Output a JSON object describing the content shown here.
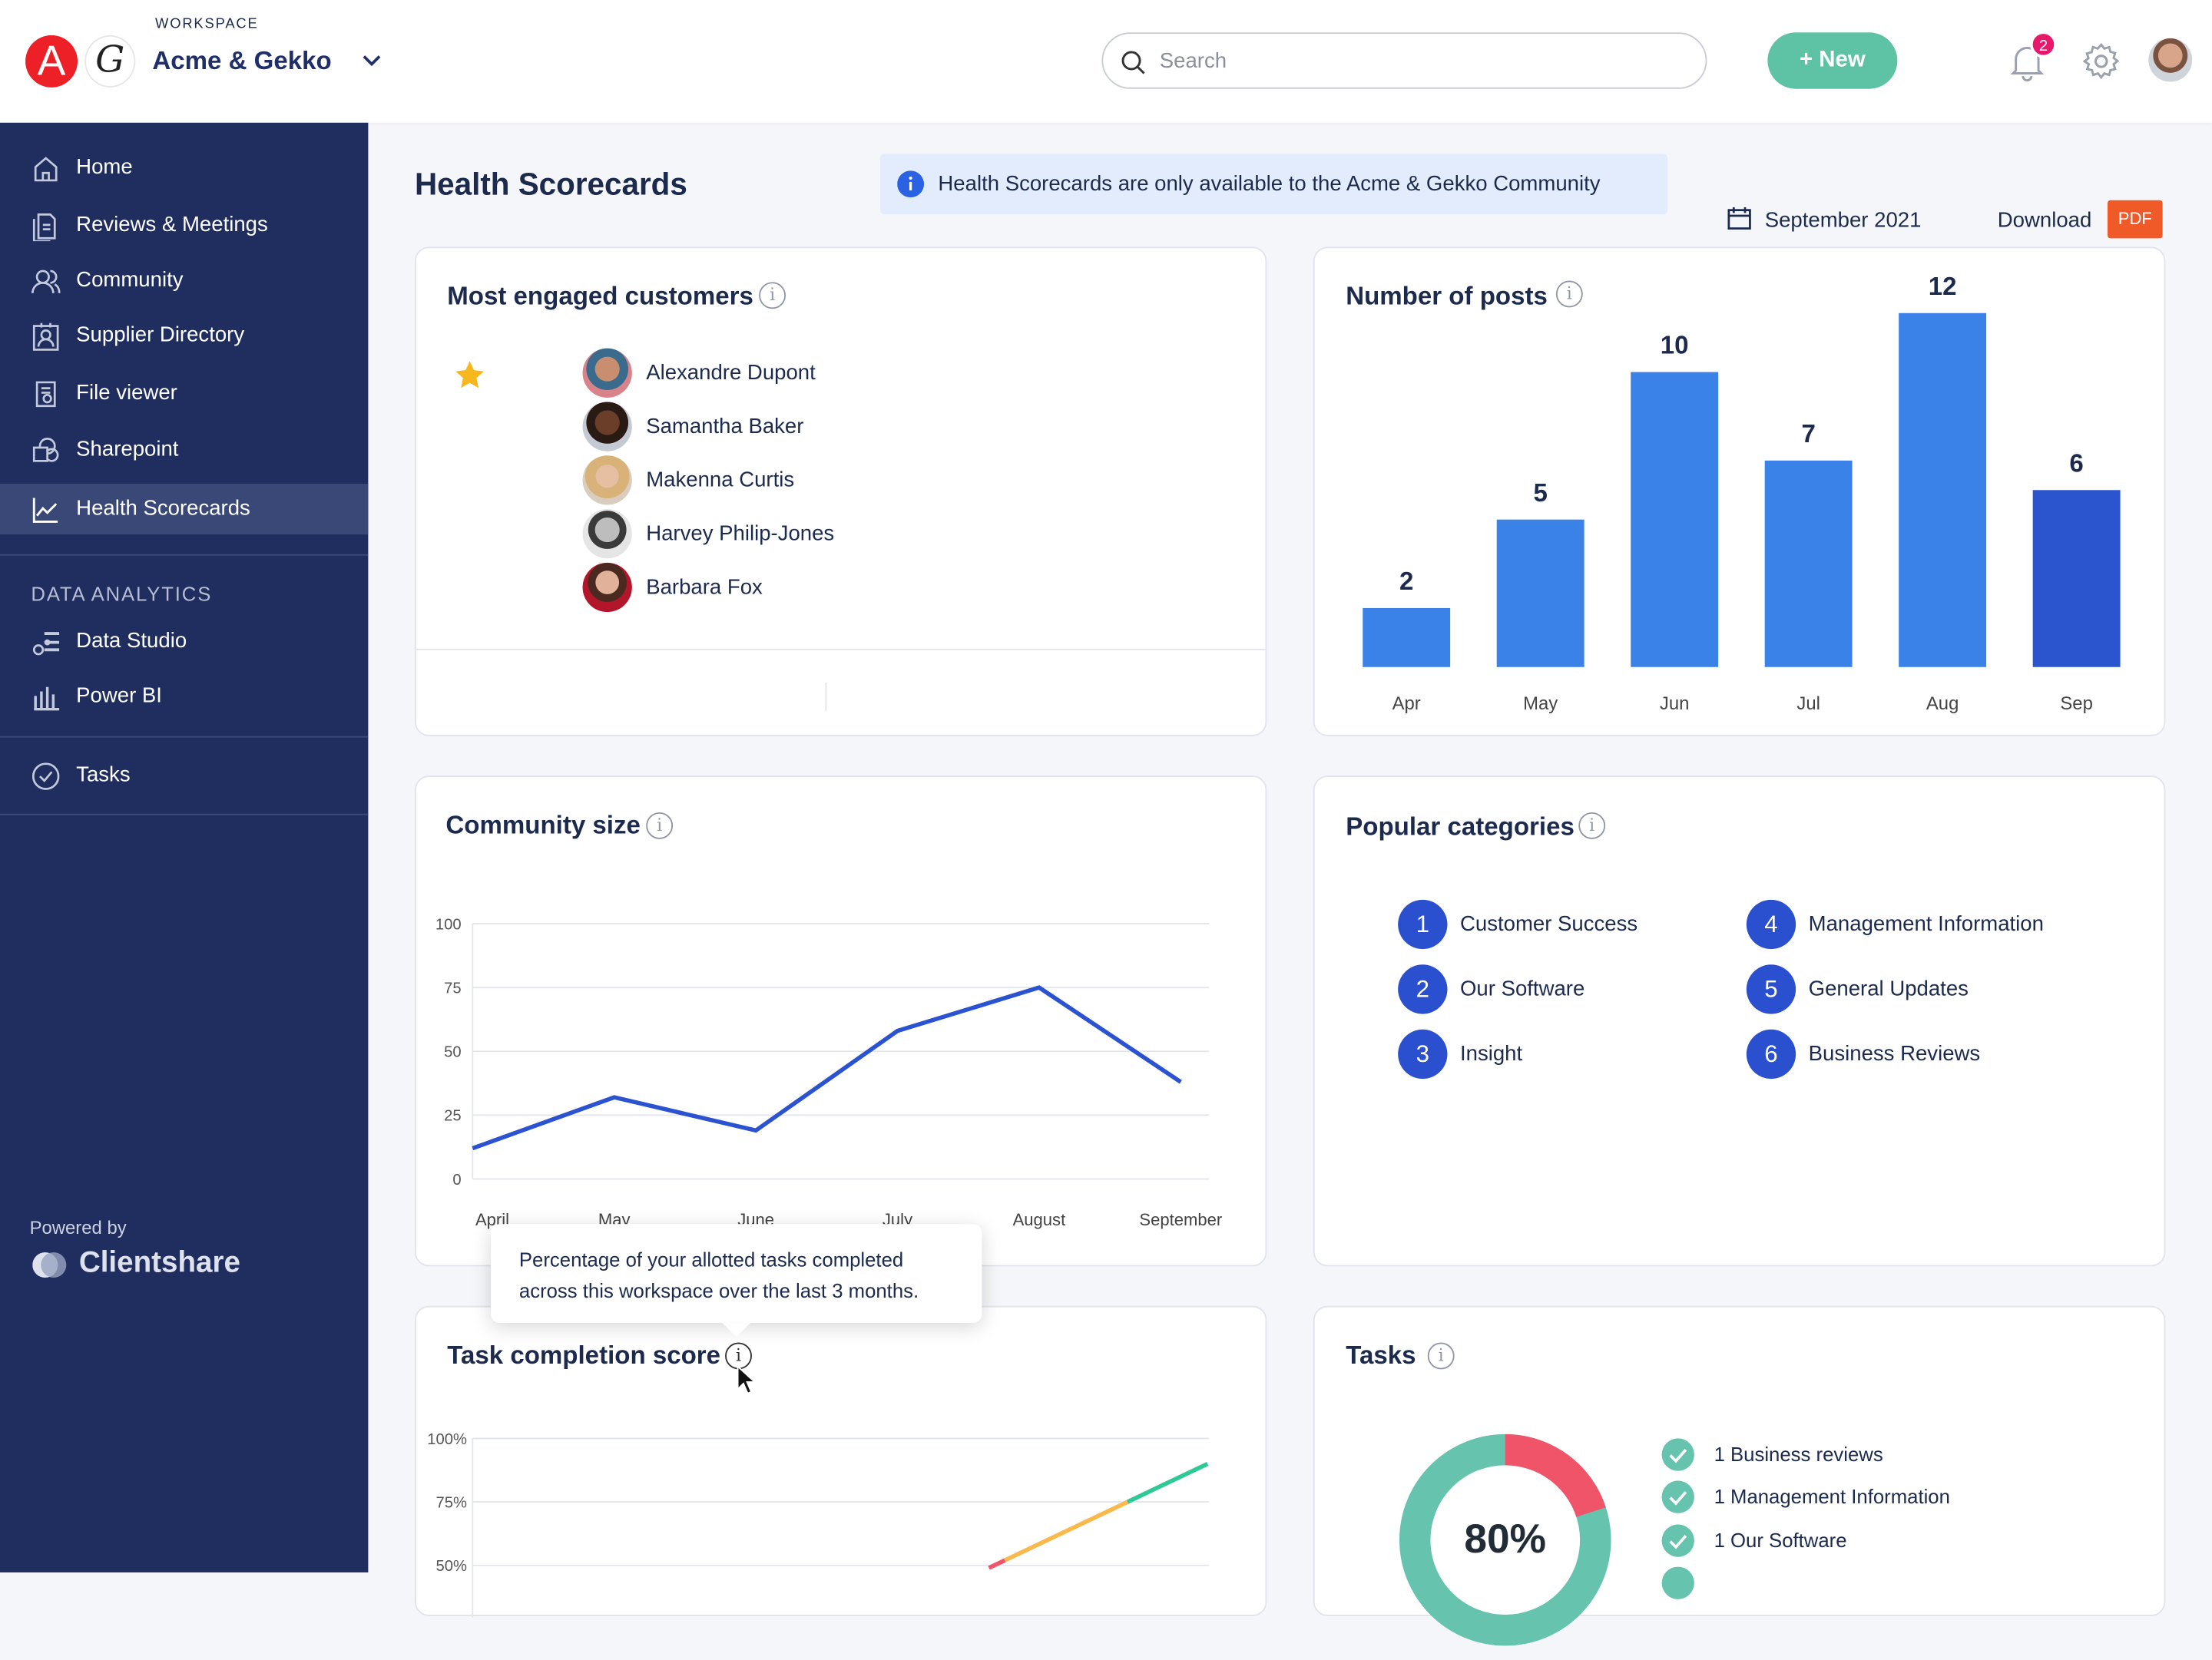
{
  "header": {
    "logo_letter_a": "A",
    "logo_letter_g": "G",
    "workspace_label": "WORKSPACE",
    "workspace_name": "Acme & Gekko",
    "search_placeholder": "Search",
    "new_label": "New",
    "notification_count": "2"
  },
  "sidebar": {
    "items": [
      {
        "label": "Home",
        "icon": "home-icon"
      },
      {
        "label": "Reviews & Meetings",
        "icon": "document-icon"
      },
      {
        "label": "Community",
        "icon": "users-icon"
      },
      {
        "label": "Supplier Directory",
        "icon": "contact-icon"
      },
      {
        "label": "File viewer",
        "icon": "file-search-icon"
      },
      {
        "label": "Sharepoint",
        "icon": "sharepoint-icon"
      },
      {
        "label": "Health Scorecards",
        "icon": "chart-line-icon",
        "active": true
      }
    ],
    "section_label": "DATA ANALYTICS",
    "analytics_items": [
      {
        "label": "Data Studio",
        "icon": "data-studio-icon"
      },
      {
        "label": "Power BI",
        "icon": "power-bi-icon"
      }
    ],
    "tasks_item": {
      "label": "Tasks",
      "icon": "check-circle-icon"
    },
    "powered_by": "Powered by",
    "brand": "Clientshare"
  },
  "page": {
    "title": "Health Scorecards",
    "banner": "Health Scorecards are only available to the Acme & Gekko Community",
    "date": "September 2021",
    "download_label": "Download",
    "pdf_label": "PDF"
  },
  "colors": {
    "sidebar": "#1f2d5f",
    "accent_teal": "#5ec3a5",
    "bar": "#3a82e8",
    "bar_current": "#2b55cf",
    "line": "#2a52d1",
    "pdf": "#f05a28",
    "danger": "#f05468"
  },
  "customers": {
    "title": "Most engaged customers",
    "items": [
      "Alexandre Dupont",
      "Samantha Baker",
      "Makenna Curtis",
      "Harvey Philip-Jones",
      "Barbara Fox"
    ],
    "starred": "Alexandre Dupont"
  },
  "categories": {
    "title": "Popular categories",
    "items": [
      {
        "n": "1",
        "label": "Customer Success"
      },
      {
        "n": "2",
        "label": "Our Software"
      },
      {
        "n": "3",
        "label": "Insight"
      },
      {
        "n": "4",
        "label": "Management Information"
      },
      {
        "n": "5",
        "label": "General Updates"
      },
      {
        "n": "6",
        "label": "Business Reviews"
      }
    ]
  },
  "tooltip": "Percentage of your allotted tasks completed across this workspace over the last 3 months.",
  "tasks": {
    "title": "Tasks",
    "percent_label": "80%",
    "completed_fraction": 0.8,
    "items": [
      "1 Business reviews",
      "1 Management Information",
      "1 Our Software"
    ]
  },
  "chart_data": [
    {
      "id": "posts",
      "type": "bar",
      "title": "Number of posts",
      "categories": [
        "Apr",
        "May",
        "Jun",
        "Jul",
        "Aug",
        "Sep"
      ],
      "values": [
        2,
        5,
        10,
        7,
        12,
        6
      ],
      "ylim": [
        0,
        12
      ]
    },
    {
      "id": "community",
      "type": "line",
      "title": "Community size",
      "categories": [
        "April",
        "May",
        "June",
        "July",
        "August",
        "September"
      ],
      "values": [
        12,
        32,
        19,
        58,
        75,
        38
      ],
      "ylim": [
        0,
        100
      ],
      "yticks": [
        "0",
        "25",
        "50",
        "75",
        "100"
      ],
      "grid": true
    },
    {
      "id": "task_score",
      "type": "line",
      "title": "Task completion score",
      "yticks": [
        "50%",
        "75%",
        "100%"
      ],
      "ylim": [
        50,
        100
      ],
      "segments": [
        {
          "color": "#f05468",
          "from": 49,
          "to": 52
        },
        {
          "color": "#fbb84b",
          "from": 52,
          "to": 75
        },
        {
          "color": "#2ec995",
          "from": 75,
          "to": 90
        }
      ],
      "grid": true
    }
  ]
}
